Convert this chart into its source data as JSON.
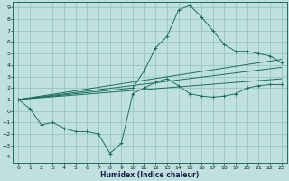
{
  "xlabel": "Humidex (Indice chaleur)",
  "bg_color": "#c0e0e0",
  "grid_color": "#90c0c0",
  "line_color": "#1a6e60",
  "xlim": [
    -0.5,
    23.5
  ],
  "ylim": [
    -4.5,
    9.5
  ],
  "xticks": [
    0,
    1,
    2,
    3,
    4,
    5,
    6,
    7,
    8,
    9,
    10,
    11,
    12,
    13,
    14,
    15,
    16,
    17,
    18,
    19,
    20,
    21,
    22,
    23
  ],
  "yticks": [
    -4,
    -3,
    -2,
    -1,
    0,
    1,
    2,
    3,
    4,
    5,
    6,
    7,
    8,
    9
  ],
  "line1_x": [
    0,
    1,
    2,
    3,
    4,
    5,
    6,
    7,
    8,
    9,
    10,
    11,
    12,
    13,
    14,
    15,
    16,
    17,
    18,
    19,
    20,
    21,
    22,
    23
  ],
  "line1_y": [
    1,
    0.2,
    -1.2,
    -1.0,
    -1.5,
    -1.8,
    -1.8,
    -2.0,
    -3.7,
    -2.8,
    1.5,
    2.0,
    2.5,
    2.8,
    2.2,
    1.5,
    1.3,
    1.2,
    1.3,
    1.5,
    2.0,
    2.2,
    2.3,
    2.3
  ],
  "line2_x": [
    0,
    10,
    11,
    12,
    13,
    14,
    15,
    16,
    17,
    18,
    19,
    20,
    21,
    22,
    23
  ],
  "line2_y": [
    1,
    2.0,
    3.5,
    5.5,
    6.5,
    8.8,
    9.2,
    8.2,
    7.0,
    5.8,
    5.2,
    5.2,
    5.0,
    4.8,
    4.2
  ],
  "line3_x": [
    0,
    23
  ],
  "line3_y": [
    1.0,
    4.5
  ],
  "line4_x": [
    0,
    23
  ],
  "line4_y": [
    1.0,
    3.8
  ],
  "line5_x": [
    0,
    23
  ],
  "line5_y": [
    1.0,
    2.8
  ]
}
